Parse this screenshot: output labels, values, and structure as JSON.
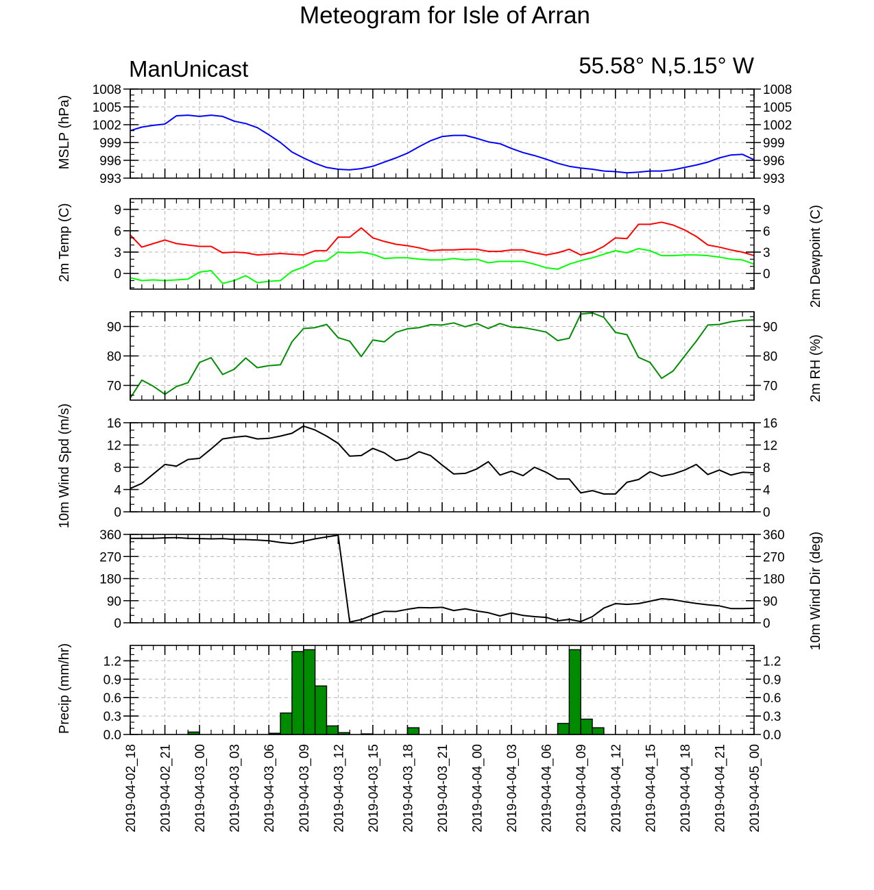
{
  "title": "Meteogram for Isle of Arran",
  "model": "ManUnicast",
  "location": "55.58° N,5.15° W",
  "time_labels": [
    "2019-04-02_18",
    "2019-04-02_21",
    "2019-04-03_00",
    "2019-04-03_03",
    "2019-04-03_06",
    "2019-04-03_09",
    "2019-04-03_12",
    "2019-04-03_15",
    "2019-04-03_18",
    "2019-04-03_21",
    "2019-04-04_00",
    "2019-04-04_03",
    "2019-04-04_06",
    "2019-04-04_09",
    "2019-04-04_12",
    "2019-04-04_15",
    "2019-04-04_18",
    "2019-04-04_21",
    "2019-04-05_00"
  ],
  "chart_data": [
    {
      "type": "line",
      "ylabel": "MSLP (hPa)",
      "ylim": [
        993,
        1008
      ],
      "yticks": [
        993,
        996,
        999,
        1002,
        1005,
        1008
      ],
      "ticklabels": [
        "993",
        "996",
        "999",
        "1002",
        "1005",
        "1008"
      ],
      "grid": true,
      "x_range_hours": [
        0,
        54
      ],
      "series": [
        {
          "color": "#0000ff",
          "x": [
            0,
            1,
            2,
            3,
            4,
            5,
            6,
            7,
            8,
            9,
            10,
            11,
            12,
            13,
            14,
            15,
            16,
            17,
            18,
            19,
            20,
            21,
            22,
            23,
            24,
            25,
            26,
            27,
            28,
            29,
            30,
            31,
            32,
            33,
            34,
            35,
            36,
            37,
            38,
            39,
            40,
            41,
            42,
            43,
            44,
            45,
            46,
            47,
            48,
            49,
            50,
            51,
            52,
            53,
            54
          ],
          "values": [
            1001.0,
            1001.6,
            1001.9,
            1002.1,
            1003.5,
            1003.6,
            1003.4,
            1003.6,
            1003.4,
            1002.6,
            1002.2,
            1001.5,
            1000.3,
            999.0,
            997.4,
            996.4,
            995.5,
            994.8,
            994.5,
            994.4,
            994.6,
            995.0,
            995.7,
            996.4,
            997.2,
            998.3,
            999.3,
            1000.0,
            1000.2,
            1000.2,
            999.7,
            999.1,
            998.8,
            998.0,
            997.3,
            996.8,
            996.2,
            995.5,
            995.0,
            994.7,
            994.5,
            994.2,
            994.1,
            993.9,
            994.0,
            994.2,
            994.2,
            994.4,
            994.8,
            995.2,
            995.7,
            996.4,
            996.9,
            997.0,
            996.1
          ]
        }
      ]
    },
    {
      "type": "line",
      "ylabel": "2m Temp (C)",
      "ylabel_right": "2m Dewpoint (C)",
      "ylim": [
        -2.2,
        10.5
      ],
      "yticks": [
        0,
        3,
        6,
        9
      ],
      "ticklabels": [
        "0",
        "3",
        "6",
        "9"
      ],
      "grid": true,
      "x_range_hours": [
        0,
        54
      ],
      "series": [
        {
          "color": "#ff0000",
          "x": [
            0,
            1,
            2,
            3,
            4,
            5,
            6,
            7,
            8,
            9,
            10,
            11,
            12,
            13,
            14,
            15,
            16,
            17,
            18,
            19,
            20,
            21,
            22,
            23,
            24,
            25,
            26,
            27,
            28,
            29,
            30,
            31,
            32,
            33,
            34,
            35,
            36,
            37,
            38,
            39,
            40,
            41,
            42,
            43,
            44,
            45,
            46,
            47,
            48,
            49,
            50,
            51,
            52,
            53,
            54
          ],
          "values": [
            5.4,
            3.7,
            4.2,
            4.7,
            4.2,
            4.0,
            3.8,
            3.8,
            2.9,
            3.0,
            2.9,
            2.6,
            2.7,
            2.8,
            2.7,
            2.6,
            3.2,
            3.2,
            5.1,
            5.1,
            6.4,
            5.0,
            4.5,
            4.1,
            3.9,
            3.6,
            3.2,
            3.3,
            3.3,
            3.4,
            3.4,
            3.1,
            3.1,
            3.3,
            3.3,
            2.9,
            2.6,
            2.9,
            3.4,
            2.6,
            3.0,
            3.8,
            5.0,
            4.9,
            6.9,
            6.9,
            7.2,
            6.8,
            6.1,
            5.2,
            4.0,
            3.7,
            3.3,
            3.0,
            2.5
          ]
        },
        {
          "color": "#00ff00",
          "x": [
            0,
            1,
            2,
            3,
            4,
            5,
            6,
            7,
            8,
            9,
            10,
            11,
            12,
            13,
            14,
            15,
            16,
            17,
            18,
            19,
            20,
            21,
            22,
            23,
            24,
            25,
            26,
            27,
            28,
            29,
            30,
            31,
            32,
            33,
            34,
            35,
            36,
            37,
            38,
            39,
            40,
            41,
            42,
            43,
            44,
            45,
            46,
            47,
            48,
            49,
            50,
            51,
            52,
            53,
            54
          ],
          "values": [
            -0.6,
            -1.0,
            -0.9,
            -1.0,
            -0.9,
            -0.8,
            0.2,
            0.4,
            -1.4,
            -1.0,
            -0.3,
            -1.3,
            -1.1,
            -1.0,
            0.3,
            0.9,
            1.7,
            1.8,
            3.0,
            2.9,
            3.0,
            2.7,
            2.1,
            2.2,
            2.2,
            2.0,
            1.9,
            1.9,
            2.1,
            1.9,
            2.0,
            1.5,
            1.7,
            1.7,
            1.7,
            1.3,
            0.8,
            0.6,
            1.3,
            1.8,
            2.2,
            2.7,
            3.2,
            2.9,
            3.5,
            3.2,
            2.5,
            2.5,
            2.6,
            2.6,
            2.5,
            2.3,
            2.0,
            1.9,
            1.3
          ]
        }
      ]
    },
    {
      "type": "line",
      "ylabel_right": "2m RH (%)",
      "ylim": [
        65,
        95
      ],
      "yticks": [
        70,
        80,
        90
      ],
      "ticklabels": [
        "70",
        "80",
        "90"
      ],
      "grid": true,
      "x_range_hours": [
        0,
        54
      ],
      "series": [
        {
          "color": "#008c00",
          "x": [
            0,
            1,
            2,
            3,
            4,
            5,
            6,
            7,
            8,
            9,
            10,
            11,
            12,
            13,
            14,
            15,
            16,
            17,
            18,
            19,
            20,
            21,
            22,
            23,
            24,
            25,
            26,
            27,
            28,
            29,
            30,
            31,
            32,
            33,
            34,
            35,
            36,
            37,
            38,
            39,
            40,
            41,
            42,
            43,
            44,
            45,
            46,
            47,
            48,
            49,
            50,
            51,
            52,
            53,
            54
          ],
          "values": [
            65.7,
            71.8,
            69.7,
            67.0,
            69.6,
            70.9,
            77.8,
            79.4,
            73.7,
            75.5,
            79.3,
            76.0,
            76.7,
            77.0,
            84.8,
            89.3,
            89.6,
            90.7,
            86.2,
            85.0,
            79.8,
            85.4,
            84.8,
            88.0,
            89.2,
            89.6,
            90.6,
            90.5,
            91.2,
            89.9,
            91.0,
            89.3,
            91.0,
            89.8,
            89.6,
            88.9,
            88.1,
            85.2,
            86.0,
            94.2,
            94.6,
            93.1,
            88.0,
            87.2,
            79.5,
            77.8,
            72.4,
            74.9,
            80.0,
            85.0,
            90.5,
            90.7,
            91.6,
            92.1,
            92.2
          ]
        }
      ]
    },
    {
      "type": "line",
      "ylabel": "10m Wind Spd (m/s)",
      "ylim": [
        0,
        16
      ],
      "yticks": [
        0,
        4,
        8,
        12,
        16
      ],
      "ticklabels": [
        "0",
        "4",
        "8",
        "12",
        "16"
      ],
      "grid": true,
      "x_range_hours": [
        0,
        54
      ],
      "series": [
        {
          "color": "#000000",
          "x": [
            0,
            1,
            2,
            3,
            4,
            5,
            6,
            7,
            8,
            9,
            10,
            11,
            12,
            13,
            14,
            15,
            16,
            17,
            18,
            19,
            20,
            21,
            22,
            23,
            24,
            25,
            26,
            27,
            28,
            29,
            30,
            31,
            32,
            33,
            34,
            35,
            36,
            37,
            38,
            39,
            40,
            41,
            42,
            43,
            44,
            45,
            46,
            47,
            48,
            49,
            50,
            51,
            52,
            53,
            54
          ],
          "values": [
            4.2,
            5.1,
            6.8,
            8.5,
            8.2,
            9.4,
            9.6,
            11.3,
            13.1,
            13.4,
            13.6,
            13.1,
            13.2,
            13.6,
            14.1,
            15.4,
            14.7,
            13.6,
            12.3,
            10.0,
            10.1,
            11.4,
            10.6,
            9.2,
            9.6,
            10.8,
            10.1,
            8.4,
            6.8,
            6.9,
            7.7,
            9.0,
            6.6,
            7.3,
            6.5,
            8.0,
            7.1,
            5.9,
            5.9,
            3.4,
            3.8,
            3.2,
            3.2,
            5.3,
            5.8,
            7.2,
            6.4,
            6.8,
            7.5,
            8.5,
            6.7,
            7.5,
            6.6,
            7.1,
            7.0
          ]
        }
      ]
    },
    {
      "type": "line",
      "ylabel_right": "10m Wind Dir (deg)",
      "ylim": [
        0,
        360
      ],
      "yticks": [
        0,
        90,
        180,
        270,
        360
      ],
      "ticklabels": [
        "0",
        "90",
        "180",
        "270",
        "360"
      ],
      "grid": true,
      "x_range_hours": [
        0,
        54
      ],
      "series": [
        {
          "color": "#000000",
          "x": [
            0,
            1,
            2,
            3,
            4,
            5,
            6,
            7,
            8,
            9,
            10,
            11,
            12,
            13,
            14,
            15,
            16,
            17,
            18,
            19,
            20,
            21,
            22,
            23,
            24,
            25,
            26,
            27,
            28,
            29,
            30,
            31,
            32,
            33,
            34,
            35,
            36,
            37,
            38,
            39,
            40,
            41,
            42,
            43,
            44,
            45,
            46,
            47,
            48,
            49,
            50,
            51,
            52,
            53,
            54
          ],
          "values": [
            344,
            344,
            344,
            346,
            347,
            344,
            343,
            342,
            343,
            340,
            339,
            337,
            334,
            327,
            323,
            332,
            342,
            350,
            357,
            3,
            13,
            32,
            47,
            46,
            55,
            62,
            61,
            63,
            50,
            57,
            48,
            41,
            28,
            40,
            30,
            25,
            22,
            8,
            14,
            5,
            25,
            60,
            78,
            75,
            78,
            88,
            98,
            94,
            86,
            79,
            73,
            69,
            58,
            58,
            59
          ]
        }
      ]
    },
    {
      "type": "bar",
      "ylabel": "Precip (mm/hr)",
      "ylim": [
        0,
        1.45
      ],
      "yticks": [
        0.0,
        0.3,
        0.6,
        0.9,
        1.2
      ],
      "ticklabels": [
        "0.0",
        "0.3",
        "0.6",
        "0.9",
        "1.2"
      ],
      "grid": true,
      "x_range_hours": [
        0,
        54
      ],
      "series": [
        {
          "color": "#008c00",
          "x": [
            0,
            1,
            2,
            3,
            4,
            5,
            6,
            7,
            8,
            9,
            10,
            11,
            12,
            13,
            14,
            15,
            16,
            17,
            18,
            19,
            20,
            21,
            22,
            23,
            24,
            25,
            26,
            27,
            28,
            29,
            30,
            31,
            32,
            33,
            34,
            35,
            36,
            37,
            38,
            39,
            40,
            41,
            42,
            43,
            44,
            45,
            46,
            47,
            48,
            49,
            50,
            51,
            52,
            53
          ],
          "values": [
            0,
            0,
            0,
            0,
            0,
            0.04,
            0,
            0,
            0,
            0,
            0,
            0,
            0.02,
            0.35,
            1.35,
            1.38,
            0.79,
            0.14,
            0.03,
            0,
            0.01,
            0,
            0,
            0,
            0.11,
            0,
            0,
            0,
            0,
            0,
            0,
            0,
            0,
            0,
            0,
            0,
            0,
            0.18,
            1.38,
            0.25,
            0.11,
            0,
            0,
            0,
            0,
            0,
            0,
            0,
            0,
            0,
            0,
            0,
            0,
            0
          ]
        }
      ]
    }
  ]
}
